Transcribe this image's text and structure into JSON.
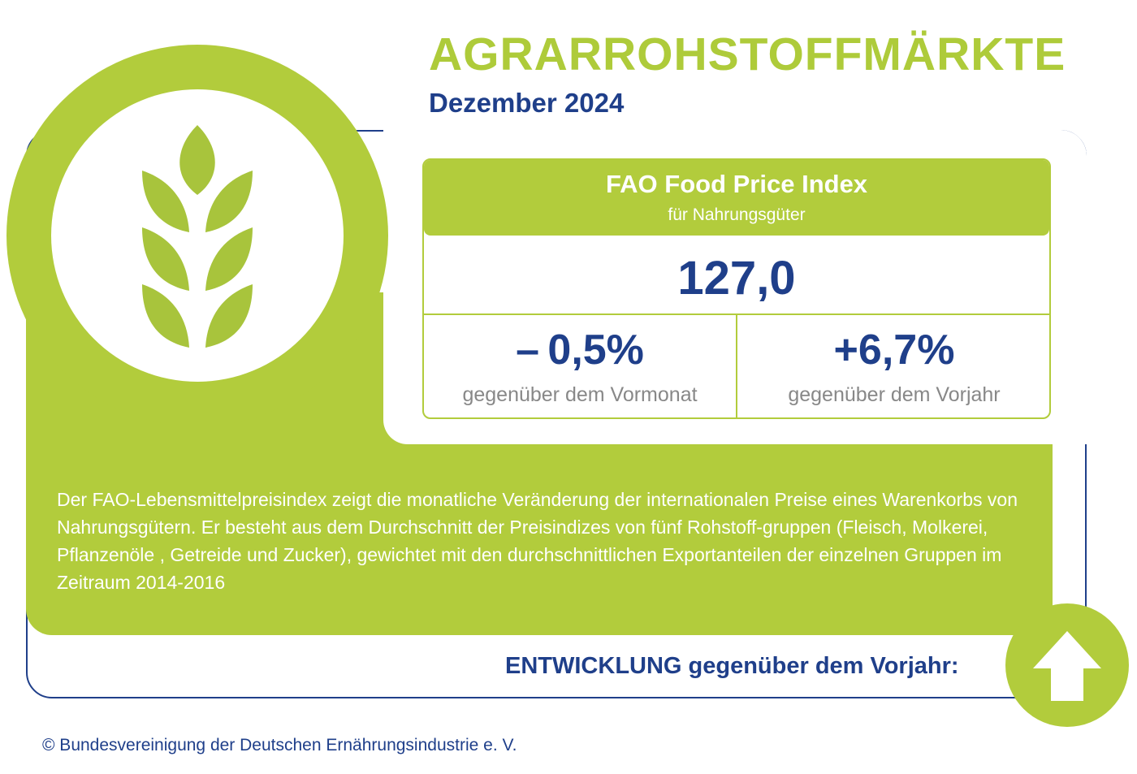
{
  "header": {
    "title": "AGRARROHSTOFFMÄRKTE",
    "date": "Dezember 2024"
  },
  "logo": {
    "icon": "wheat-icon"
  },
  "index_box": {
    "title": "FAO Food Price Index",
    "subtitle": "für Nahrungsgüter",
    "value": "127,0",
    "month_change": {
      "value": "– 0,5%",
      "label": "gegenüber dem Vormonat"
    },
    "year_change": {
      "value": "+6,7%",
      "label": "gegenüber dem Vorjahr"
    }
  },
  "description": "Der FAO-Lebensmittelpreisindex zeigt die monatliche Veränderung der internationalen Preise eines Warenkorbs von Nahrungsgütern. Er besteht aus dem Durchschnitt der Preisindizes von fünf Rohstoff-gruppen (Fleisch, Molkerei, Pflanzenöle , Getreide und Zucker),  gewichtet mit den durchschnittlichen Exportanteilen der einzelnen Gruppen im Zeitraum 2014-2016",
  "development": {
    "label": "ENTWICKLUNG gegenüber dem Vorjahr:",
    "direction_icon": "arrow-up-icon"
  },
  "footer": {
    "copyright": "© Bundesvereinigung der Deutschen Ernährungsindustrie e. V."
  },
  "colors": {
    "accent_green": "#b2cc3c",
    "title_green": "#aecb3a",
    "navy": "#1f3f8a",
    "label_gray": "#888888"
  }
}
